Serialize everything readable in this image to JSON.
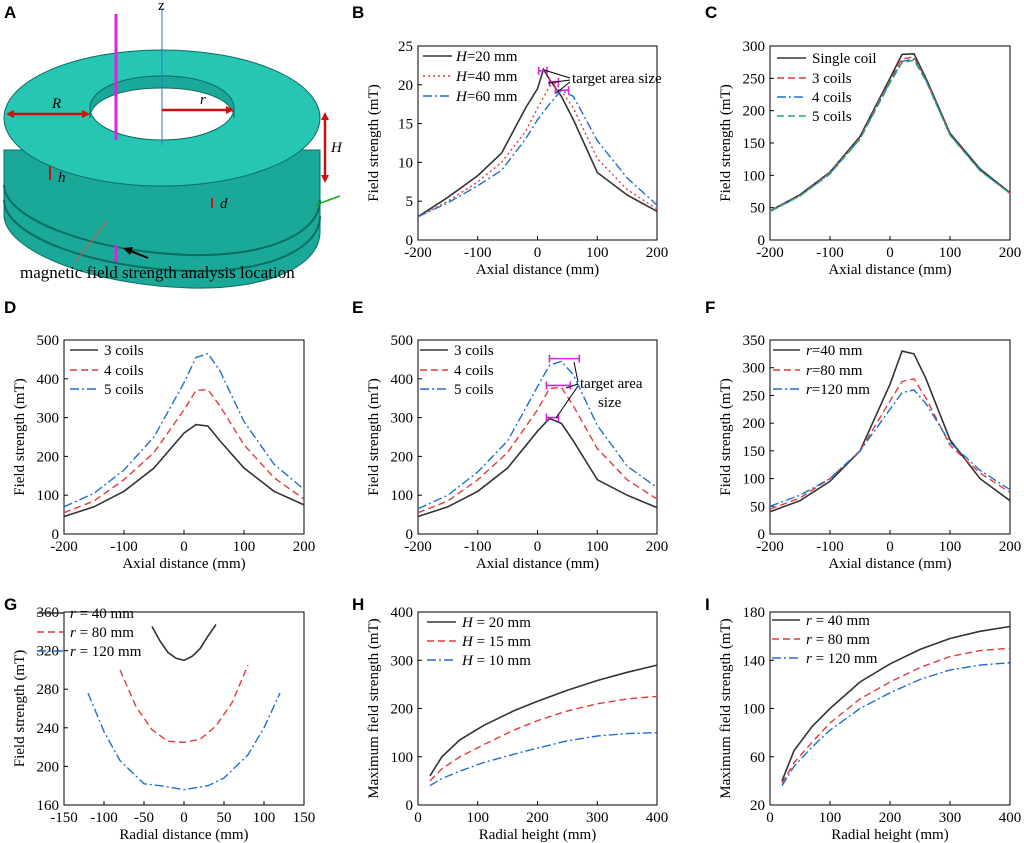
{
  "colors": {
    "black": "#333333",
    "red": "#e23b3b",
    "blue": "#1f6fd1",
    "green": "#2aa86a",
    "magenta": "#e020e0",
    "disk_top": "#26c6b3",
    "disk_side": "#1aa898",
    "arrow_red": "#cc1111"
  },
  "panel_A": {
    "label": "A",
    "R_label": "R",
    "r_label": "r",
    "H_label": "H",
    "h_label": "h",
    "d_label": "d",
    "z_label": "z",
    "caption": "magnetic field strength analysis location"
  },
  "chart_data": [
    {
      "id": "B",
      "type": "line",
      "xlabel": "Axial distance (mm)",
      "ylabel": "Field strength (mT)",
      "xlim": [
        -200,
        200
      ],
      "ylim": [
        0,
        25
      ],
      "xticks": [
        -200,
        -100,
        0,
        100,
        200
      ],
      "yticks": [
        0,
        5,
        10,
        15,
        20,
        25
      ],
      "legend": "top-left",
      "annotation": "target area size",
      "series": [
        {
          "name": "H=20 mm",
          "label_var": "H",
          "label_rest": "=20 mm",
          "color": "black",
          "dash": "solid",
          "x": [
            -200,
            -150,
            -100,
            -60,
            -20,
            0,
            10,
            20,
            40,
            60,
            100,
            150,
            200
          ],
          "y": [
            3,
            5.5,
            8.3,
            11.2,
            17,
            19.5,
            22,
            20.7,
            18.5,
            15.5,
            8.7,
            5.8,
            3.7
          ]
        },
        {
          "name": "H=40 mm",
          "label_var": "H",
          "label_rest": "=40 mm",
          "color": "red",
          "dash": "dot",
          "x": [
            -200,
            -150,
            -100,
            -60,
            -20,
            0,
            20,
            30,
            40,
            60,
            100,
            150,
            200
          ],
          "y": [
            3,
            5,
            7.5,
            10,
            14,
            17,
            19.8,
            20.2,
            19.2,
            17,
            10.5,
            6.5,
            4
          ]
        },
        {
          "name": "H=60 mm",
          "label_var": "H",
          "label_rest": "=60 mm",
          "color": "blue",
          "dash": "dashdot",
          "x": [
            -200,
            -150,
            -100,
            -60,
            -20,
            0,
            20,
            40,
            60,
            100,
            150,
            200
          ],
          "y": [
            3,
            4.8,
            7,
            9,
            13,
            15.5,
            17.5,
            19.3,
            18.5,
            12.8,
            8,
            4.5
          ]
        }
      ],
      "target_markers": [
        {
          "x_from": 2,
          "x_to": 16,
          "y": 21.8
        },
        {
          "x_from": 20,
          "x_to": 35,
          "y": 20.4
        },
        {
          "x_from": 30,
          "x_to": 52,
          "y": 19.3
        }
      ]
    },
    {
      "id": "C",
      "type": "line",
      "xlabel": "Axial distance (mm)",
      "ylabel": "Field strength (mT)",
      "xlim": [
        -200,
        200
      ],
      "ylim": [
        0,
        300
      ],
      "xticks": [
        -200,
        -100,
        0,
        100,
        200
      ],
      "yticks": [
        0,
        50,
        100,
        150,
        200,
        250,
        300
      ],
      "legend": "top-left",
      "series": [
        {
          "name": "Single coil",
          "color": "black",
          "dash": "solid",
          "x": [
            -200,
            -150,
            -100,
            -50,
            0,
            20,
            40,
            60,
            100,
            150,
            200
          ],
          "y": [
            45,
            70,
            105,
            160,
            250,
            287,
            288,
            250,
            165,
            110,
            73
          ]
        },
        {
          "name": "3 coils",
          "color": "red",
          "dash": "dash",
          "x": [
            -200,
            -150,
            -100,
            -50,
            0,
            20,
            40,
            60,
            100,
            150,
            200
          ],
          "y": [
            45,
            69,
            104,
            158,
            247,
            280,
            283,
            248,
            163,
            108,
            72
          ]
        },
        {
          "name": "4 coils",
          "color": "blue",
          "dash": "dashdot",
          "x": [
            -200,
            -150,
            -100,
            -50,
            0,
            20,
            40,
            60,
            100,
            150,
            200
          ],
          "y": [
            44,
            68,
            103,
            157,
            245,
            276,
            280,
            247,
            163,
            108,
            72
          ]
        },
        {
          "name": "5 coils",
          "color": "green",
          "dash": "dash",
          "x": [
            -200,
            -150,
            -100,
            -50,
            0,
            20,
            40,
            60,
            100,
            150,
            200
          ],
          "y": [
            44,
            68,
            102,
            156,
            243,
            274,
            278,
            246,
            162,
            107,
            72
          ]
        }
      ]
    },
    {
      "id": "D",
      "type": "line",
      "xlabel": "Axial distance (mm)",
      "ylabel": "Field strength (mT)",
      "xlim": [
        -200,
        200
      ],
      "ylim": [
        0,
        500
      ],
      "xticks": [
        -200,
        -100,
        0,
        100,
        200
      ],
      "yticks": [
        0,
        100,
        200,
        300,
        400,
        500
      ],
      "legend": "top-left",
      "series": [
        {
          "name": "3 coils",
          "color": "black",
          "dash": "solid",
          "x": [
            -200,
            -150,
            -100,
            -50,
            0,
            20,
            40,
            60,
            100,
            150,
            200
          ],
          "y": [
            45,
            70,
            110,
            170,
            260,
            282,
            278,
            240,
            170,
            110,
            75
          ]
        },
        {
          "name": "4 coils",
          "color": "red",
          "dash": "dash",
          "x": [
            -200,
            -150,
            -100,
            -50,
            0,
            20,
            40,
            60,
            100,
            150,
            200
          ],
          "y": [
            55,
            85,
            140,
            210,
            320,
            370,
            372,
            330,
            230,
            145,
            90
          ]
        },
        {
          "name": "5 coils",
          "color": "blue",
          "dash": "dashdot",
          "x": [
            -200,
            -150,
            -100,
            -50,
            0,
            20,
            40,
            60,
            100,
            150,
            200
          ],
          "y": [
            70,
            105,
            165,
            250,
            390,
            455,
            465,
            420,
            290,
            180,
            115
          ]
        }
      ]
    },
    {
      "id": "E",
      "type": "line",
      "xlabel": "Axial distance (mm)",
      "ylabel": "Field strength (mT)",
      "xlim": [
        -200,
        200
      ],
      "ylim": [
        0,
        500
      ],
      "xticks": [
        -200,
        -100,
        0,
        100,
        200
      ],
      "yticks": [
        0,
        100,
        200,
        300,
        400,
        500
      ],
      "legend": "top-left",
      "annotation_line1": "target area",
      "annotation_line2": "size",
      "series": [
        {
          "name": "3 coils",
          "color": "black",
          "dash": "solid",
          "x": [
            -200,
            -150,
            -100,
            -50,
            0,
            20,
            40,
            60,
            100,
            150,
            200
          ],
          "y": [
            45,
            70,
            110,
            170,
            265,
            298,
            285,
            240,
            140,
            100,
            68
          ]
        },
        {
          "name": "4 coils",
          "color": "red",
          "dash": "dash",
          "x": [
            -200,
            -150,
            -100,
            -50,
            0,
            20,
            40,
            60,
            100,
            150,
            200
          ],
          "y": [
            55,
            85,
            140,
            210,
            320,
            375,
            378,
            330,
            220,
            140,
            90
          ]
        },
        {
          "name": "5 coils",
          "color": "blue",
          "dash": "dashdot",
          "x": [
            -200,
            -150,
            -100,
            -50,
            0,
            20,
            40,
            60,
            100,
            150,
            200
          ],
          "y": [
            65,
            100,
            160,
            240,
            380,
            435,
            445,
            410,
            280,
            175,
            120
          ]
        }
      ],
      "target_markers": [
        {
          "x_from": 15,
          "x_to": 35,
          "y": 300
        },
        {
          "x_from": 15,
          "x_to": 55,
          "y": 383
        },
        {
          "x_from": 20,
          "x_to": 70,
          "y": 452
        }
      ]
    },
    {
      "id": "F",
      "type": "line",
      "xlabel": "Axial distance (mm)",
      "ylabel": "Field strength (mT)",
      "xlim": [
        -200,
        200
      ],
      "ylim": [
        0,
        350
      ],
      "xticks": [
        -200,
        -100,
        0,
        100,
        200
      ],
      "yticks": [
        0,
        50,
        100,
        150,
        200,
        250,
        300,
        350
      ],
      "legend": "top-left",
      "series": [
        {
          "name": "r=40 mm",
          "label_var": "r",
          "label_rest": "=40 mm",
          "color": "black",
          "dash": "solid",
          "x": [
            -200,
            -150,
            -100,
            -50,
            0,
            20,
            40,
            60,
            100,
            150,
            200
          ],
          "y": [
            40,
            60,
            95,
            150,
            270,
            330,
            325,
            280,
            170,
            100,
            60
          ]
        },
        {
          "name": "r=80 mm",
          "label_var": "r",
          "label_rest": "=80 mm",
          "color": "red",
          "dash": "dash",
          "x": [
            -200,
            -150,
            -100,
            -50,
            0,
            20,
            40,
            60,
            100,
            150,
            200
          ],
          "y": [
            45,
            65,
            100,
            150,
            240,
            275,
            280,
            245,
            160,
            110,
            75
          ]
        },
        {
          "name": "r=120 mm",
          "label_var": "r",
          "label_rest": "=120 mm",
          "color": "blue",
          "dash": "dashdot",
          "x": [
            -200,
            -150,
            -100,
            -50,
            0,
            20,
            40,
            60,
            100,
            150,
            200
          ],
          "y": [
            50,
            70,
            100,
            150,
            225,
            255,
            260,
            235,
            165,
            115,
            80
          ]
        }
      ]
    },
    {
      "id": "G",
      "type": "line",
      "xlabel": "Radial distance (mm)",
      "ylabel": "Field strength (mT)",
      "xlim": [
        -150,
        150
      ],
      "ylim": [
        160,
        360
      ],
      "xticks": [
        -150,
        -100,
        -50,
        0,
        50,
        100,
        150
      ],
      "yticks": [
        160,
        200,
        240,
        280,
        320,
        360
      ],
      "legend": "top-left",
      "series": [
        {
          "name": "r = 40 mm",
          "label_var": "r",
          "label_rest": " = 40 mm",
          "color": "black",
          "dash": "solid",
          "x": [
            -40,
            -30,
            -20,
            -10,
            0,
            10,
            20,
            30,
            40
          ],
          "y": [
            345,
            330,
            318,
            312,
            310,
            314,
            322,
            335,
            347
          ]
        },
        {
          "name": "r = 80 mm",
          "label_var": "r",
          "label_rest": " = 80 mm",
          "color": "red",
          "dash": "dash",
          "x": [
            -80,
            -60,
            -40,
            -20,
            0,
            20,
            40,
            60,
            80
          ],
          "y": [
            300,
            262,
            238,
            226,
            225,
            228,
            242,
            266,
            305
          ]
        },
        {
          "name": "r = 120 mm",
          "label_var": "r",
          "label_rest": " = 120 mm",
          "color": "blue",
          "dash": "dashdot",
          "x": [
            -120,
            -100,
            -80,
            -50,
            -30,
            0,
            30,
            50,
            80,
            100,
            120
          ],
          "y": [
            276,
            236,
            206,
            182,
            180,
            176,
            180,
            188,
            212,
            240,
            276
          ]
        }
      ]
    },
    {
      "id": "H",
      "type": "line",
      "xlabel": "Radial height (mm)",
      "ylabel": "Maximum field strength (mT)",
      "xlim": [
        0,
        400
      ],
      "ylim": [
        0,
        400
      ],
      "xticks": [
        0,
        100,
        200,
        300,
        400
      ],
      "yticks": [
        0,
        100,
        200,
        300,
        400
      ],
      "legend": "top-left",
      "series": [
        {
          "name": "H = 20 mm",
          "label_var": "H",
          "label_rest": " = 20 mm",
          "color": "black",
          "dash": "solid",
          "x": [
            20,
            40,
            70,
            110,
            160,
            200,
            250,
            300,
            350,
            400
          ],
          "y": [
            60,
            100,
            135,
            165,
            195,
            215,
            238,
            258,
            275,
            290
          ]
        },
        {
          "name": "H = 15 mm",
          "label_var": "H",
          "label_rest": " = 15 mm",
          "color": "red",
          "dash": "dash",
          "x": [
            20,
            40,
            70,
            110,
            160,
            200,
            250,
            300,
            350,
            400
          ],
          "y": [
            50,
            75,
            100,
            125,
            155,
            175,
            195,
            210,
            220,
            225
          ]
        },
        {
          "name": "H = 10 mm",
          "label_var": "H",
          "label_rest": " = 10 mm",
          "color": "blue",
          "dash": "dashdot",
          "x": [
            20,
            40,
            70,
            110,
            160,
            200,
            250,
            300,
            350,
            400
          ],
          "y": [
            40,
            55,
            70,
            88,
            105,
            118,
            133,
            143,
            148,
            150
          ]
        }
      ]
    },
    {
      "id": "I",
      "type": "line",
      "xlabel": "Radial height (mm)",
      "ylabel": "Maximum field strength (mT)",
      "xlim": [
        0,
        400
      ],
      "ylim": [
        20,
        180
      ],
      "xticks": [
        0,
        100,
        200,
        300,
        400
      ],
      "yticks": [
        20,
        60,
        100,
        140,
        180
      ],
      "legend": "top-left",
      "series": [
        {
          "name": "r = 40 mm",
          "label_var": "r",
          "label_rest": " = 40 mm",
          "color": "black",
          "dash": "solid",
          "x": [
            20,
            40,
            70,
            100,
            150,
            200,
            250,
            300,
            350,
            400
          ],
          "y": [
            40,
            65,
            85,
            100,
            122,
            137,
            149,
            158,
            164,
            168
          ]
        },
        {
          "name": "r = 80 mm",
          "label_var": "r",
          "label_rest": " = 80 mm",
          "color": "red",
          "dash": "dash",
          "x": [
            20,
            40,
            70,
            100,
            150,
            200,
            250,
            300,
            350,
            400
          ],
          "y": [
            38,
            55,
            72,
            88,
            108,
            122,
            134,
            143,
            148,
            150
          ]
        },
        {
          "name": "r = 120 mm",
          "label_var": "r",
          "label_rest": " = 120 mm",
          "color": "blue",
          "dash": "dashdot",
          "x": [
            20,
            40,
            70,
            100,
            150,
            200,
            250,
            300,
            350,
            400
          ],
          "y": [
            36,
            52,
            68,
            82,
            100,
            113,
            124,
            132,
            136,
            138
          ]
        }
      ]
    }
  ]
}
